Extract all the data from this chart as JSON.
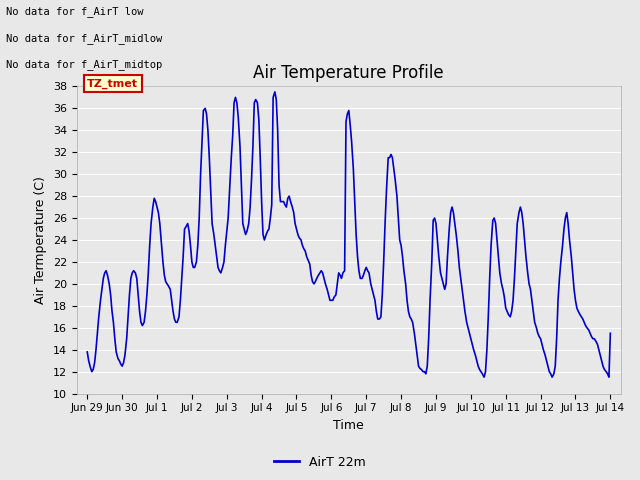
{
  "title": "Air Temperature Profile",
  "xlabel": "Time",
  "ylabel": "Air Termperature (C)",
  "ylim": [
    10,
    38
  ],
  "yticks": [
    10,
    12,
    14,
    16,
    18,
    20,
    22,
    24,
    26,
    28,
    30,
    32,
    34,
    36,
    38
  ],
  "line_color": "#0000cc",
  "line_width": 1.2,
  "bg_color": "#e8e8e8",
  "text_annotations": [
    "No data for f_AirT low",
    "No data for f_AirT_midlow",
    "No data for f_AirT_midtop"
  ],
  "legend_label": "AirT 22m",
  "tz_label": "TZ_tmet",
  "x_tick_labels": [
    "Jun 29",
    "Jun 30",
    "Jul 1",
    "Jul 2",
    "Jul 3",
    "Jul 4",
    "Jul 5",
    "Jul 6",
    "Jul 7",
    "Jul 8",
    "Jul 9",
    "Jul 10",
    "Jul 11",
    "Jul 12",
    "Jul 13",
    "Jul 14"
  ],
  "x_tick_positions": [
    0,
    1,
    2,
    3,
    4,
    5,
    6,
    7,
    8,
    9,
    10,
    11,
    12,
    13,
    14,
    15
  ],
  "time_data": [
    0.0,
    0.04,
    0.08,
    0.13,
    0.17,
    0.21,
    0.25,
    0.29,
    0.33,
    0.38,
    0.42,
    0.46,
    0.5,
    0.54,
    0.58,
    0.63,
    0.67,
    0.71,
    0.75,
    0.79,
    0.83,
    0.88,
    0.92,
    0.96,
    1.0,
    1.04,
    1.08,
    1.13,
    1.17,
    1.21,
    1.25,
    1.29,
    1.33,
    1.38,
    1.42,
    1.46,
    1.5,
    1.54,
    1.58,
    1.63,
    1.67,
    1.71,
    1.75,
    1.79,
    1.83,
    1.88,
    1.92,
    1.96,
    2.0,
    2.04,
    2.08,
    2.13,
    2.17,
    2.21,
    2.25,
    2.29,
    2.33,
    2.38,
    2.42,
    2.46,
    2.5,
    2.54,
    2.58,
    2.63,
    2.67,
    2.71,
    2.75,
    2.79,
    2.83,
    2.88,
    2.92,
    2.96,
    3.0,
    3.04,
    3.08,
    3.13,
    3.17,
    3.21,
    3.25,
    3.29,
    3.33,
    3.38,
    3.42,
    3.46,
    3.5,
    3.54,
    3.58,
    3.63,
    3.67,
    3.71,
    3.75,
    3.79,
    3.83,
    3.88,
    3.92,
    3.96,
    4.0,
    4.04,
    4.08,
    4.13,
    4.17,
    4.21,
    4.25,
    4.29,
    4.33,
    4.38,
    4.42,
    4.46,
    4.5,
    4.54,
    4.58,
    4.63,
    4.67,
    4.71,
    4.75,
    4.79,
    4.83,
    4.88,
    4.92,
    4.96,
    5.0,
    5.04,
    5.08,
    5.13,
    5.17,
    5.21,
    5.25,
    5.29,
    5.33,
    5.38,
    5.42,
    5.46,
    5.5,
    5.54,
    5.58,
    5.63,
    5.67,
    5.71,
    5.75,
    5.79,
    5.83,
    5.88,
    5.92,
    5.96,
    6.0,
    6.04,
    6.08,
    6.13,
    6.17,
    6.21,
    6.25,
    6.29,
    6.33,
    6.38,
    6.42,
    6.46,
    6.5,
    6.54,
    6.58,
    6.63,
    6.67,
    6.71,
    6.75,
    6.79,
    6.83,
    6.88,
    6.92,
    6.96,
    7.0,
    7.04,
    7.08,
    7.13,
    7.17,
    7.21,
    7.25,
    7.29,
    7.33,
    7.38,
    7.42,
    7.46,
    7.5,
    7.54,
    7.58,
    7.63,
    7.67,
    7.71,
    7.75,
    7.79,
    7.83,
    7.88,
    7.92,
    7.96,
    8.0,
    8.04,
    8.08,
    8.13,
    8.17,
    8.21,
    8.25,
    8.29,
    8.33,
    8.38,
    8.42,
    8.46,
    8.5,
    8.54,
    8.58,
    8.63,
    8.67,
    8.71,
    8.75,
    8.79,
    8.83,
    8.88,
    8.92,
    8.96,
    9.0,
    9.04,
    9.08,
    9.13,
    9.17,
    9.21,
    9.25,
    9.29,
    9.33,
    9.38,
    9.42,
    9.46,
    9.5,
    9.54,
    9.58,
    9.63,
    9.67,
    9.71,
    9.75,
    9.79,
    9.83,
    9.88,
    9.92,
    9.96,
    10.0,
    10.04,
    10.08,
    10.13,
    10.17,
    10.21,
    10.25,
    10.29,
    10.33,
    10.38,
    10.42,
    10.46,
    10.5,
    10.54,
    10.58,
    10.63,
    10.67,
    10.71,
    10.75,
    10.79,
    10.83,
    10.88,
    10.92,
    10.96,
    11.0,
    11.04,
    11.08,
    11.13,
    11.17,
    11.21,
    11.25,
    11.29,
    11.33,
    11.38,
    11.42,
    11.46,
    11.5,
    11.54,
    11.58,
    11.63,
    11.67,
    11.71,
    11.75,
    11.79,
    11.83,
    11.88,
    11.92,
    11.96,
    12.0,
    12.04,
    12.08,
    12.13,
    12.17,
    12.21,
    12.25,
    12.29,
    12.33,
    12.38,
    12.42,
    12.46,
    12.5,
    12.54,
    12.58,
    12.63,
    12.67,
    12.71,
    12.75,
    12.79,
    12.83,
    12.88,
    12.92,
    12.96,
    13.0,
    13.04,
    13.08,
    13.13,
    13.17,
    13.21,
    13.25,
    13.29,
    13.33,
    13.38,
    13.42,
    13.46,
    13.5,
    13.54,
    13.58,
    13.63,
    13.67,
    13.71,
    13.75,
    13.79,
    13.83,
    13.88,
    13.92,
    13.96,
    14.0,
    14.04,
    14.08,
    14.13,
    14.17,
    14.21,
    14.25,
    14.29,
    14.33,
    14.38,
    14.42,
    14.46,
    14.5,
    14.54,
    14.58,
    14.63,
    14.67,
    14.71,
    14.75,
    14.79,
    14.83,
    14.88,
    14.92,
    14.96,
    15.0
  ],
  "temp_data": [
    13.8,
    13.0,
    12.5,
    12.0,
    12.2,
    12.8,
    14.0,
    15.5,
    17.0,
    18.5,
    19.5,
    20.5,
    21.0,
    21.2,
    20.8,
    20.0,
    19.0,
    17.5,
    16.5,
    15.0,
    13.8,
    13.2,
    13.0,
    12.7,
    12.5,
    12.8,
    13.5,
    15.0,
    17.0,
    19.0,
    20.5,
    21.0,
    21.2,
    21.0,
    20.5,
    19.0,
    17.5,
    16.5,
    16.2,
    16.5,
    17.5,
    19.0,
    21.0,
    23.5,
    25.5,
    27.0,
    27.8,
    27.5,
    27.0,
    26.5,
    25.5,
    23.5,
    22.0,
    20.8,
    20.2,
    20.0,
    19.8,
    19.5,
    18.5,
    17.5,
    16.8,
    16.5,
    16.5,
    17.0,
    18.5,
    20.5,
    22.5,
    25.0,
    25.2,
    25.5,
    24.8,
    23.5,
    22.0,
    21.5,
    21.5,
    22.0,
    23.5,
    26.0,
    30.0,
    33.0,
    35.8,
    36.0,
    35.5,
    34.0,
    31.5,
    28.5,
    25.5,
    24.5,
    23.5,
    22.5,
    21.5,
    21.2,
    21.0,
    21.5,
    22.0,
    23.5,
    24.8,
    26.0,
    28.5,
    31.5,
    33.5,
    36.5,
    37.0,
    36.5,
    35.2,
    32.5,
    29.0,
    25.5,
    25.0,
    24.5,
    24.8,
    25.5,
    27.0,
    29.5,
    32.5,
    36.5,
    36.8,
    36.5,
    35.0,
    31.5,
    27.5,
    24.5,
    24.0,
    24.5,
    24.8,
    25.0,
    26.0,
    27.2,
    37.0,
    37.5,
    36.8,
    34.0,
    29.0,
    27.5,
    27.5,
    27.5,
    27.2,
    27.0,
    27.8,
    28.0,
    27.5,
    27.0,
    26.5,
    25.5,
    25.0,
    24.5,
    24.2,
    24.0,
    23.5,
    23.2,
    23.0,
    22.5,
    22.2,
    21.8,
    20.8,
    20.2,
    20.0,
    20.2,
    20.5,
    20.8,
    21.0,
    21.2,
    21.0,
    20.5,
    20.0,
    19.5,
    19.0,
    18.5,
    18.5,
    18.5,
    18.8,
    19.0,
    20.0,
    21.0,
    20.8,
    20.5,
    21.0,
    21.2,
    34.8,
    35.5,
    35.8,
    34.5,
    33.0,
    30.5,
    27.5,
    24.5,
    22.5,
    21.2,
    20.5,
    20.5,
    20.8,
    21.2,
    21.5,
    21.2,
    21.0,
    20.0,
    19.5,
    19.0,
    18.5,
    17.5,
    16.8,
    16.8,
    17.0,
    19.0,
    22.0,
    25.5,
    28.5,
    31.5,
    31.5,
    31.8,
    31.5,
    30.5,
    29.5,
    28.0,
    26.0,
    24.0,
    23.5,
    22.5,
    21.2,
    20.0,
    18.5,
    17.5,
    17.0,
    16.8,
    16.5,
    15.5,
    14.5,
    13.5,
    12.5,
    12.3,
    12.2,
    12.0,
    12.0,
    11.8,
    12.5,
    15.0,
    18.5,
    22.0,
    25.8,
    26.0,
    25.5,
    24.0,
    22.5,
    21.0,
    20.5,
    20.0,
    19.5,
    20.0,
    22.5,
    25.0,
    26.5,
    27.0,
    26.5,
    25.5,
    24.5,
    23.0,
    21.5,
    20.5,
    19.5,
    18.5,
    17.5,
    16.5,
    16.0,
    15.5,
    15.0,
    14.5,
    14.0,
    13.5,
    13.0,
    12.5,
    12.2,
    12.0,
    11.8,
    11.5,
    12.0,
    14.0,
    17.0,
    20.5,
    23.5,
    25.8,
    26.0,
    25.5,
    24.0,
    22.5,
    21.0,
    20.0,
    19.5,
    18.8,
    17.8,
    17.5,
    17.2,
    17.0,
    17.5,
    18.5,
    20.5,
    23.0,
    25.5,
    26.5,
    27.0,
    26.5,
    25.5,
    24.0,
    22.5,
    21.0,
    20.0,
    19.5,
    18.5,
    17.5,
    16.5,
    16.0,
    15.5,
    15.2,
    15.0,
    14.5,
    14.0,
    13.5,
    13.0,
    12.5,
    12.0,
    11.8,
    11.5,
    11.8,
    12.5,
    15.0,
    18.5,
    20.5,
    22.0,
    23.5,
    25.0,
    26.0,
    26.5,
    25.5,
    24.0,
    22.5,
    21.0,
    19.5,
    18.5,
    17.8,
    17.5,
    17.2,
    17.0,
    16.8,
    16.5,
    16.2,
    16.0,
    15.8,
    15.5,
    15.2,
    15.0,
    15.0,
    14.8,
    14.5,
    14.0,
    13.5,
    13.0,
    12.5,
    12.2,
    12.0,
    11.8,
    11.5,
    15.5
  ]
}
